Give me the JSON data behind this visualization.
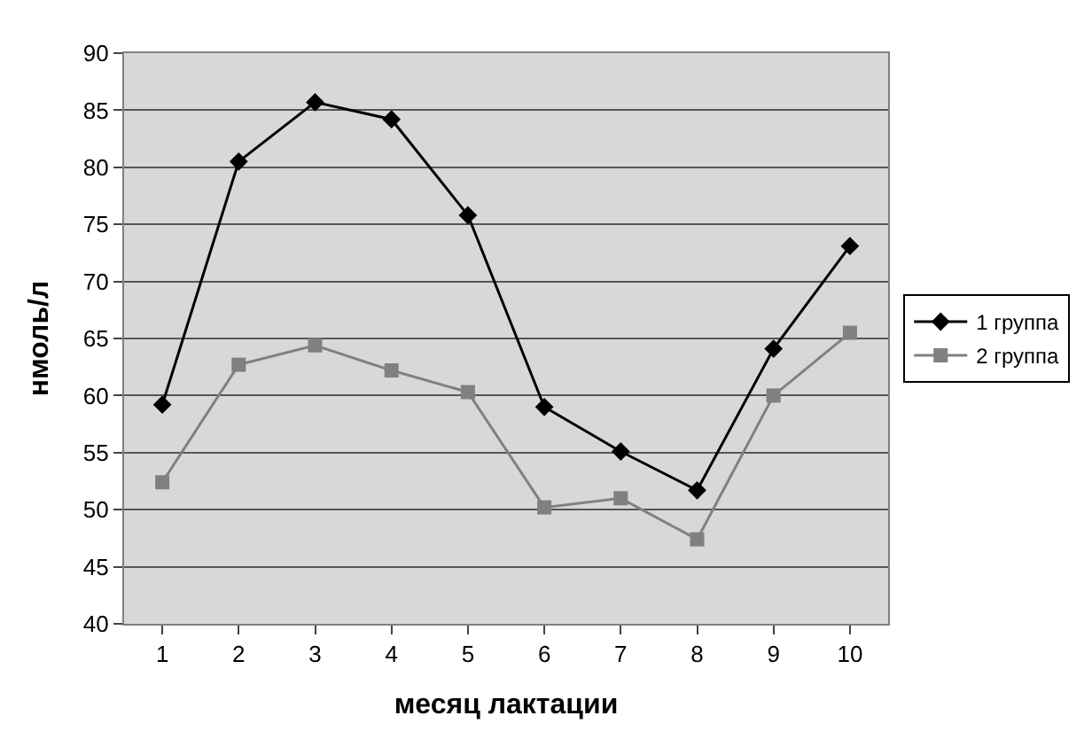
{
  "chart_data": {
    "type": "line",
    "xlabel": "месяц лактации",
    "ylabel": "нмоль/л",
    "categories": [
      "1",
      "2",
      "3",
      "4",
      "5",
      "6",
      "7",
      "8",
      "9",
      "10"
    ],
    "series": [
      {
        "name": "1 группа",
        "color": "#000000",
        "marker": "diamond",
        "values": [
          59.2,
          80.5,
          85.7,
          84.2,
          75.8,
          59.0,
          55.1,
          51.7,
          64.1,
          73.1
        ]
      },
      {
        "name": "2 группа",
        "color": "#808080",
        "marker": "square",
        "values": [
          52.4,
          62.7,
          64.4,
          62.2,
          60.3,
          50.2,
          51.0,
          47.4,
          60.0,
          65.5
        ]
      }
    ],
    "ylim": [
      40,
      90
    ],
    "yticks": [
      40,
      45,
      50,
      55,
      60,
      65,
      70,
      75,
      80,
      85,
      90
    ],
    "grid": "y",
    "legend": "right",
    "line_style": "solid"
  }
}
